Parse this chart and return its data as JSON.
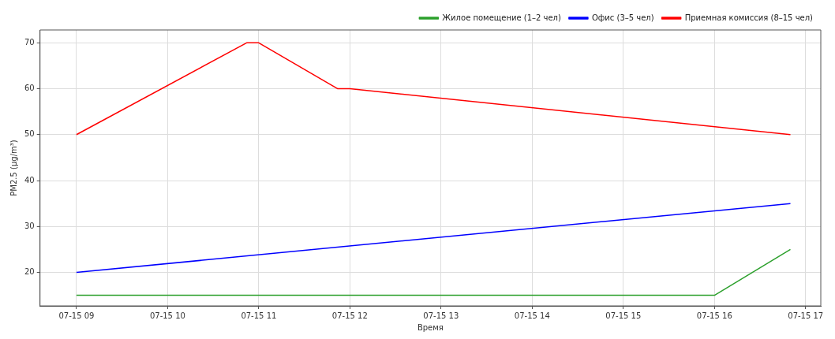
{
  "chart_data": {
    "type": "line",
    "xlabel": "Время",
    "ylabel": "PM2.5 (μg/m³)",
    "legend": "top right",
    "grid": true,
    "marker": "none",
    "line_style": "solid",
    "xlim": [
      "--07-15T08:36",
      "--07-15T17:10"
    ],
    "xticks": [
      {
        "value": "--07-15T09:00",
        "label": "07-15 09"
      },
      {
        "value": "--07-15T10:00",
        "label": "07-15 10"
      },
      {
        "value": "--07-15T11:00",
        "label": "07-15 11"
      },
      {
        "value": "--07-15T12:00",
        "label": "07-15 12"
      },
      {
        "value": "--07-15T13:00",
        "label": "07-15 13"
      },
      {
        "value": "--07-15T14:00",
        "label": "07-15 14"
      },
      {
        "value": "--07-15T15:00",
        "label": "07-15 15"
      },
      {
        "value": "--07-15T16:00",
        "label": "07-15 16"
      },
      {
        "value": "--07-15T17:00",
        "label": "07-15 17"
      }
    ],
    "ylim": [
      12.7,
      72.8
    ],
    "yticks": [
      20,
      30,
      40,
      50,
      60,
      70
    ],
    "series": [
      {
        "name": "Жилое помещение (1–2 чел)",
        "color": "#2ca02c",
        "x": [
          "--07-15T09:00",
          "--07-15T16:00",
          "--07-15T16:50"
        ],
        "values": [
          15,
          15,
          25
        ]
      },
      {
        "name": "Офис (3–5 чел)",
        "color": "#0000ff",
        "x": [
          "--07-15T09:00",
          "--07-15T16:50"
        ],
        "values": [
          20,
          35
        ]
      },
      {
        "name": "Приемная комиссия (8–15 чел)",
        "color": "#ff0000",
        "x": [
          "--07-15T09:00",
          "--07-15T10:52",
          "--07-15T11:00",
          "--07-15T11:52",
          "--07-15T12:00",
          "--07-15T16:50"
        ],
        "values": [
          50,
          70,
          70,
          60,
          60,
          50
        ]
      }
    ]
  }
}
